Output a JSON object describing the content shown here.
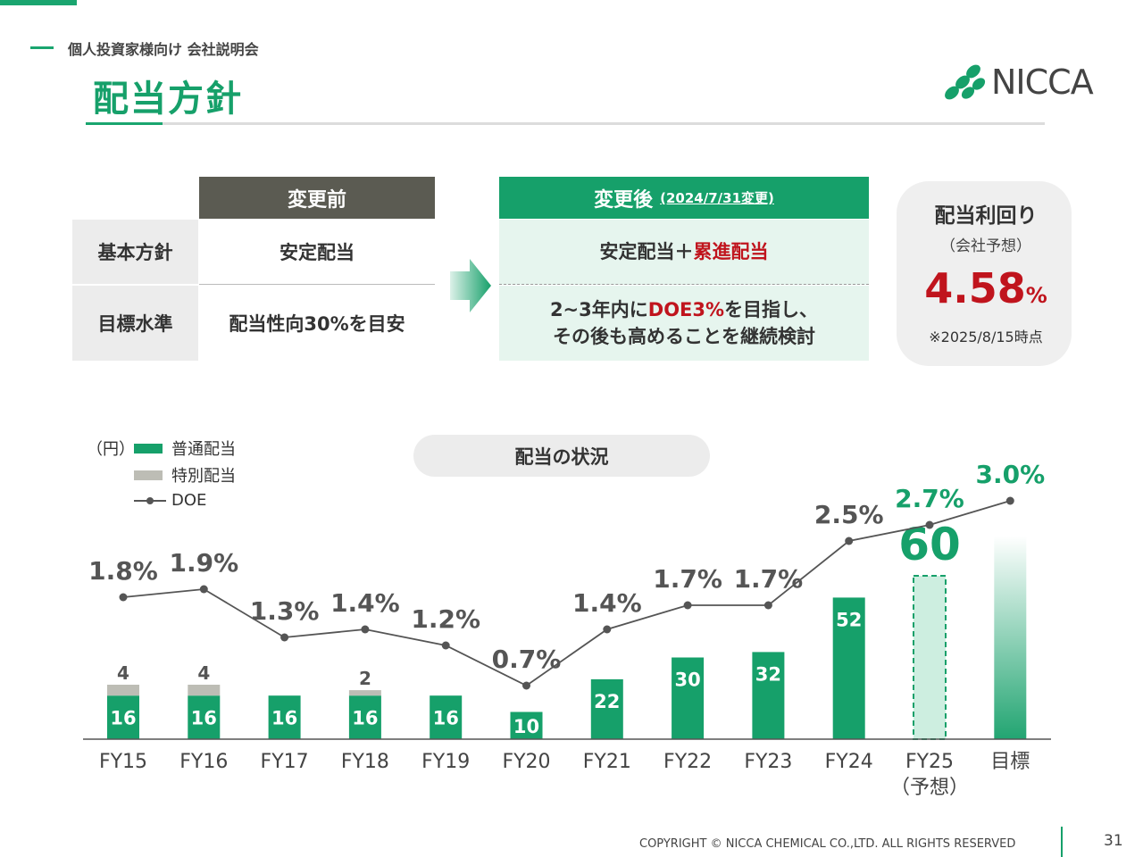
{
  "header": {
    "subtitle": "個人投資家様向け 会社説明会",
    "title": "配当方針",
    "logo_text": "NICCA"
  },
  "policy_table": {
    "before_header": "変更前",
    "after_header": "変更後",
    "after_header_date": "(2024/7/31変更)",
    "rows": [
      {
        "label": "基本方針",
        "before": "安定配当",
        "after_parts": [
          "安定配当＋",
          "累進配当"
        ]
      },
      {
        "label": "目標水準",
        "before": "配当性向30%を目安",
        "after_line1_parts": [
          "2~3年内に",
          "DOE3%",
          "を目指し、"
        ],
        "after_line2": "その後も高めることを継続検討"
      }
    ]
  },
  "yield_box": {
    "title": "配当利回り",
    "sub": "（会社予想）",
    "value": "4.58",
    "unit": "%",
    "note": "※2025/8/15時点"
  },
  "chart_data": {
    "type": "bar",
    "title": "配当の状況",
    "unit_label": "（円）",
    "legend": [
      "普通配当",
      "特別配当",
      "DOE"
    ],
    "categories": [
      "FY15",
      "FY16",
      "FY17",
      "FY18",
      "FY19",
      "FY20",
      "FY21",
      "FY22",
      "FY23",
      "FY24",
      "FY25",
      "目標"
    ],
    "category_sub": {
      "FY25": "（予想）"
    },
    "series": [
      {
        "name": "普通配当",
        "values": [
          16,
          16,
          16,
          16,
          16,
          10,
          22,
          30,
          32,
          52,
          60,
          null
        ]
      },
      {
        "name": "特別配当",
        "values": [
          4,
          4,
          0,
          2,
          0,
          0,
          0,
          0,
          0,
          0,
          0,
          null
        ]
      },
      {
        "name": "DOE",
        "values": [
          1.8,
          1.9,
          1.3,
          1.4,
          1.2,
          0.7,
          1.4,
          1.7,
          1.7,
          2.5,
          2.7,
          3.0
        ]
      }
    ],
    "doe_labels": [
      "1.8%",
      "1.9%",
      "1.3%",
      "1.4%",
      "1.2%",
      "0.7%",
      "1.4%",
      "1.7%",
      "1.7%",
      "2.5%",
      "2.7%",
      "3.0%"
    ],
    "forecast_category": "FY25",
    "target_category": "目標",
    "colors": {
      "regular": "#16a06a",
      "special": "#bdbdb5",
      "doe_line": "#555555",
      "forecast_fill": "#cdeee0",
      "highlight_text": "#16a06a"
    }
  },
  "footer": {
    "copyright": "COPYRIGHT © NICCA CHEMICAL CO.,LTD. ALL RIGHTS RESERVED",
    "page": "31"
  }
}
